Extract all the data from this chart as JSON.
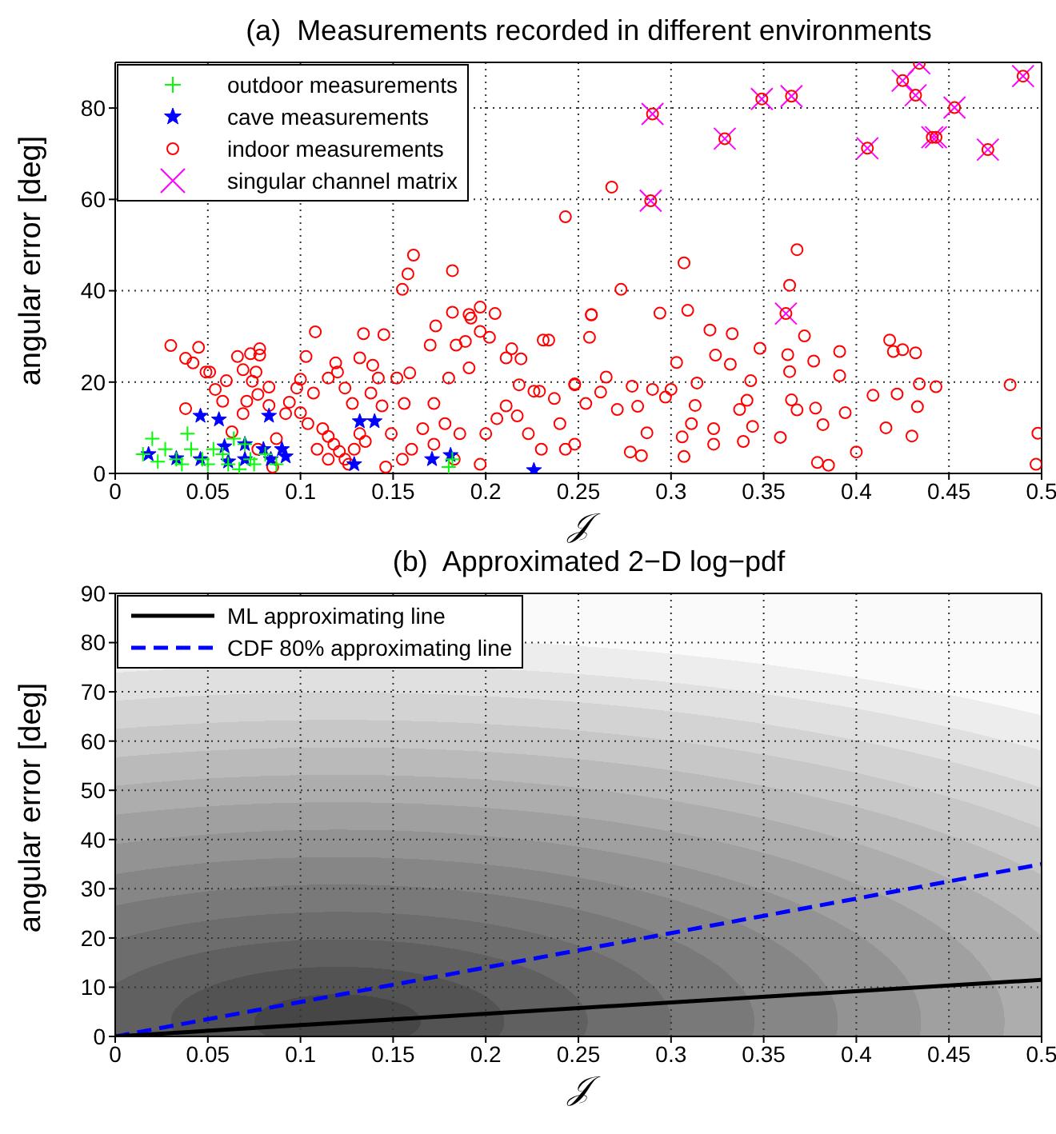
{
  "chart_data": [
    {
      "type": "scatter",
      "title": "(a)  Measurements recorded in different environments",
      "xlabel": "𝒥",
      "ylabel": "angular error [deg]",
      "xlim": [
        0,
        0.5
      ],
      "xticks": [
        0,
        0.05,
        0.1,
        0.15,
        0.2,
        0.25,
        0.3,
        0.35,
        0.4,
        0.45,
        0.5
      ],
      "ylim": [
        0,
        90
      ],
      "yticks": [
        0,
        20,
        40,
        60,
        80
      ],
      "grid": true,
      "legend": "top left",
      "series": [
        {
          "name": "outdoor measurements",
          "color": "#00ff00",
          "marker": "cross",
          "x": [
            0.015,
            0.02,
            0.027,
            0.033,
            0.039,
            0.041,
            0.047,
            0.05,
            0.053,
            0.058,
            0.061,
            0.064,
            0.07,
            0.073,
            0.075,
            0.081,
            0.087,
            0.036,
            0.023,
            0.067,
            0.18,
            0.182
          ],
          "values": [
            4.2,
            7.6,
            5.3,
            3.1,
            8.7,
            5.3,
            3.1,
            2,
            5.3,
            4.2,
            2,
            7.6,
            6.4,
            3.1,
            2,
            4.2,
            2,
            2,
            2.6,
            0.9,
            1.4,
            3.1
          ]
        },
        {
          "name": "cave measurements",
          "color": "#0000ff",
          "marker": "star",
          "x": [
            0.018,
            0.033,
            0.046,
            0.056,
            0.046,
            0.059,
            0.061,
            0.07,
            0.07,
            0.083,
            0.08,
            0.084,
            0.09,
            0.092,
            0.132,
            0.14,
            0.129,
            0.171,
            0.181,
            0.226
          ],
          "values": [
            4.2,
            3.3,
            12.6,
            11.8,
            3.1,
            5.9,
            2.6,
            6.4,
            3.1,
            12.6,
            5.3,
            3.1,
            5.3,
            3.7,
            11.4,
            11.4,
            2,
            3.1,
            4,
            0.7
          ]
        },
        {
          "name": "indoor measurements",
          "color": "#ff0000",
          "marker": "circle",
          "x": [
            0.03,
            0.038,
            0.042,
            0.045,
            0.049,
            0.051,
            0.054,
            0.06,
            0.058,
            0.038,
            0.063,
            0.066,
            0.073,
            0.078,
            0.078,
            0.069,
            0.076,
            0.074,
            0.071,
            0.069,
            0.083,
            0.077,
            0.083,
            0.087,
            0.077,
            0.085,
            0.092,
            0.094,
            0.1,
            0.103,
            0.108,
            0.098,
            0.107,
            0.1,
            0.104,
            0.112,
            0.115,
            0.118,
            0.121,
            0.124,
            0.126,
            0.109,
            0.115,
            0.129,
            0.135,
            0.132,
            0.119,
            0.12,
            0.115,
            0.124,
            0.128,
            0.134,
            0.132,
            0.139,
            0.142,
            0.138,
            0.144,
            0.145,
            0.155,
            0.158,
            0.161,
            0.152,
            0.159,
            0.156,
            0.149,
            0.16,
            0.155,
            0.146,
            0.17,
            0.173,
            0.182,
            0.182,
            0.184,
            0.189,
            0.191,
            0.191,
            0.192,
            0.197,
            0.197,
            0.205,
            0.202,
            0.18,
            0.172,
            0.178,
            0.186,
            0.166,
            0.172,
            0.183,
            0.197,
            0.2,
            0.206,
            0.211,
            0.219,
            0.214,
            0.218,
            0.211,
            0.217,
            0.223,
            0.23,
            0.226,
            0.229,
            0.231,
            0.234,
            0.237,
            0.24,
            0.243,
            0.248,
            0.248,
            0.254,
            0.257,
            0.243,
            0.268,
            0.307,
            0.273,
            0.257,
            0.256,
            0.294,
            0.309,
            0.321,
            0.333,
            0.303,
            0.324,
            0.332,
            0.348,
            0.248,
            0.265,
            0.262,
            0.271,
            0.282,
            0.279,
            0.287,
            0.278,
            0.284,
            0.29,
            0.297,
            0.3,
            0.314,
            0.313,
            0.311,
            0.306,
            0.307,
            0.323,
            0.323,
            0.337,
            0.343,
            0.341,
            0.344,
            0.339,
            0.368,
            0.364,
            0.372,
            0.363,
            0.364,
            0.365,
            0.368,
            0.378,
            0.377,
            0.382,
            0.391,
            0.391,
            0.394,
            0.359,
            0.379,
            0.385,
            0.4,
            0.409,
            0.416,
            0.418,
            0.42,
            0.425,
            0.422,
            0.432,
            0.434,
            0.433,
            0.43,
            0.443,
            0.483,
            0.498,
            0.497,
            0.29,
            0.289,
            0.329,
            0.349,
            0.365,
            0.362,
            0.406,
            0.425,
            0.434,
            0.432,
            0.441,
            0.443,
            0.453,
            0.471,
            0.49
          ],
          "values": [
            28,
            25.2,
            24.2,
            27.6,
            22.2,
            22.2,
            18.4,
            20.3,
            15.8,
            14.2,
            9.1,
            25.6,
            26.2,
            27.3,
            25.9,
            22.7,
            22.2,
            20.2,
            15.8,
            13.1,
            18.9,
            17.3,
            14.9,
            7.6,
            5.3,
            1.4,
            13.1,
            15.6,
            20.6,
            25.6,
            31,
            18.7,
            17.6,
            13.3,
            10.9,
            9.8,
            8.1,
            6.4,
            4.8,
            3.1,
            2,
            5.3,
            3.1,
            5.3,
            7,
            8.7,
            24.2,
            22.2,
            20.9,
            18.7,
            15.3,
            30.6,
            25.3,
            23.7,
            20.9,
            17.6,
            14.8,
            30.4,
            40.3,
            43.7,
            47.8,
            20.9,
            22,
            15.3,
            8.7,
            5.3,
            3.1,
            1.4,
            28.1,
            32.3,
            44.4,
            35.3,
            28.1,
            28.9,
            23.1,
            34.8,
            34,
            36.4,
            31.1,
            35,
            29.8,
            20.9,
            15.3,
            10.9,
            8.7,
            9.8,
            6.4,
            3.1,
            2,
            8.7,
            12,
            25.3,
            25.1,
            27.3,
            19.4,
            14.8,
            12.6,
            8.7,
            5.3,
            18,
            18,
            29.2,
            29.2,
            16.4,
            10.9,
            5.3,
            19.4,
            6.4,
            15.3,
            34.8,
            56.2,
            62.7,
            46.1,
            40.3,
            34.7,
            29.8,
            35.1,
            35.7,
            31.4,
            30.6,
            24.3,
            25.9,
            23.9,
            27.4,
            19.6,
            21.1,
            17.8,
            14,
            14.7,
            19.1,
            8.9,
            4.7,
            3.9,
            18.4,
            16.7,
            18.4,
            19.8,
            14.9,
            10.9,
            8,
            3.7,
            6.4,
            9.8,
            14,
            20.3,
            16,
            10.3,
            7,
            49,
            41.2,
            30.1,
            26,
            22.3,
            16.1,
            13.9,
            14.3,
            24.6,
            10.7,
            26.7,
            21.4,
            13.3,
            7.9,
            2.4,
            1.8,
            4.7,
            17.1,
            10,
            29.2,
            26.7,
            27.1,
            17.4,
            26.4,
            19.6,
            14.6,
            8.2,
            19,
            19.4,
            8.8,
            2,
            78.7,
            59.7,
            73.3,
            82,
            82.6,
            35,
            71.2,
            86,
            89.8,
            82.8,
            73.6,
            73.6,
            80.1,
            70.9,
            87
          ]
        },
        {
          "name": "singular channel matrix",
          "color": "#ff00ff",
          "marker": "x",
          "x": [
            0.29,
            0.289,
            0.329,
            0.349,
            0.365,
            0.362,
            0.406,
            0.425,
            0.434,
            0.432,
            0.441,
            0.443,
            0.453,
            0.471,
            0.49
          ],
          "values": [
            78.7,
            59.7,
            73.3,
            82,
            82.6,
            35,
            71.2,
            86,
            89.8,
            82.8,
            73.6,
            73.6,
            80.1,
            70.9,
            87
          ]
        }
      ]
    },
    {
      "type": "line",
      "title": "(b)  Approximated 2−D log−pdf",
      "xlabel": "𝒥",
      "ylabel": "angular error [deg]",
      "xlim": [
        0,
        0.5
      ],
      "xticks": [
        0,
        0.05,
        0.1,
        0.15,
        0.2,
        0.25,
        0.3,
        0.35,
        0.4,
        0.45,
        0.5
      ],
      "ylim": [
        0,
        90
      ],
      "yticks": [
        0,
        10,
        20,
        30,
        40,
        50,
        60,
        70,
        80,
        90
      ],
      "grid": true,
      "legend": "top left",
      "series": [
        {
          "name": "ML approximating line",
          "color": "#000000",
          "line_style": "solid",
          "x": [
            0,
            0.5
          ],
          "values": [
            0,
            11.5
          ]
        },
        {
          "name": "CDF 80% approximating line",
          "color": "#0000ff",
          "line_style": "dashed",
          "x": [
            0,
            0.5
          ],
          "values": [
            0,
            35
          ]
        }
      ]
    }
  ]
}
